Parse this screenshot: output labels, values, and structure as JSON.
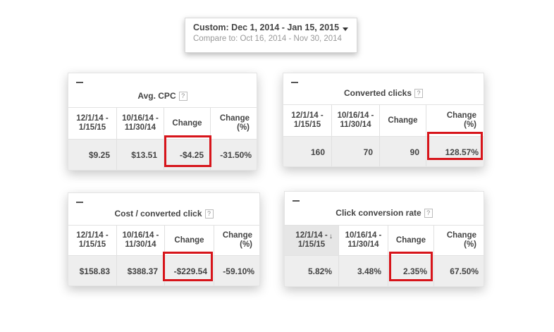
{
  "date_range": {
    "primary": "Custom: Dec 1, 2014 - Jan 15, 2015",
    "compare": "Compare to: Oct 16, 2014 - Nov 30, 2014"
  },
  "panels": {
    "avg_cpc": {
      "title": "Avg. CPC",
      "headers": [
        "12/1/14 -\n1/15/15",
        "10/16/14 -\n11/30/14",
        "Change",
        "Change\n(%)"
      ],
      "values": [
        "$9.25",
        "$13.51",
        "-$4.25",
        "-31.50%"
      ]
    },
    "converted_clicks": {
      "title": "Converted clicks",
      "headers": [
        "12/1/14 -\n1/15/15",
        "10/16/14 -\n11/30/14",
        "Change",
        "Change\n(%)"
      ],
      "values": [
        "160",
        "70",
        "90",
        "128.57%"
      ]
    },
    "cost_converted": {
      "title": "Cost / converted click",
      "headers": [
        "12/1/14 -\n1/15/15",
        "10/16/14 -\n11/30/14",
        "Change",
        "Change\n(%)"
      ],
      "values": [
        "$158.83",
        "$388.37",
        "-$229.54",
        "-59.10%"
      ]
    },
    "click_conversion": {
      "title": "Click conversion rate",
      "headers": [
        "12/1/14 -\n1/15/15",
        "10/16/14 -\n11/30/14",
        "Change",
        "Change\n(%)"
      ],
      "values": [
        "5.82%",
        "3.48%",
        "2.35%",
        "67.50%"
      ]
    }
  },
  "help_glyph": "?",
  "sort_arrow": "↓",
  "highlight_color": "#d7141a"
}
